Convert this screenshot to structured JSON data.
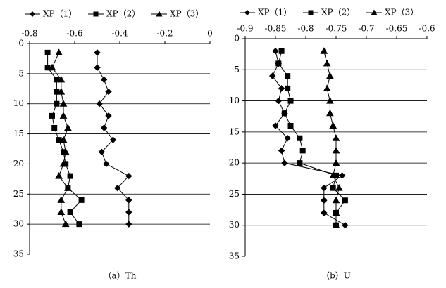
{
  "chart_data": [
    {
      "type": "line",
      "orientation": "vertical",
      "caption": "（a）Th",
      "y": [
        1.5,
        4,
        6,
        8,
        10,
        12,
        14,
        16,
        18,
        20,
        22,
        24,
        26,
        28,
        30
      ],
      "series": [
        {
          "name": "XP（1）",
          "color": "#000000",
          "marker": "diamond",
          "values": [
            -0.5,
            -0.5,
            -0.47,
            -0.45,
            -0.49,
            -0.45,
            -0.47,
            -0.43,
            -0.48,
            -0.46,
            -0.36,
            -0.41,
            -0.36,
            -0.36,
            -0.36
          ]
        },
        {
          "name": "XP（2）",
          "color": "#000000",
          "marker": "square",
          "values": [
            -0.72,
            -0.72,
            -0.68,
            -0.68,
            -0.68,
            -0.7,
            -0.69,
            -0.67,
            -0.65,
            -0.64,
            -0.62,
            -0.63,
            -0.57,
            -0.62,
            -0.58
          ]
        },
        {
          "name": "XP（3）",
          "color": "#000000",
          "marker": "triangle",
          "values": [
            -0.67,
            -0.7,
            -0.66,
            -0.66,
            -0.65,
            -0.65,
            -0.63,
            -0.65,
            -0.64,
            -0.65,
            -0.67,
            -0.63,
            -0.66,
            -0.66,
            -0.64
          ]
        }
      ],
      "xlim": [
        -0.8,
        0
      ],
      "xticks": [
        -0.8,
        -0.6,
        -0.4,
        -0.2,
        0
      ],
      "ylim": [
        0,
        35
      ],
      "yticks": [
        0,
        5,
        10,
        15,
        20,
        25,
        30,
        35
      ],
      "grid": true
    },
    {
      "type": "line",
      "orientation": "vertical",
      "caption": "（b）U",
      "y": [
        2,
        4,
        6,
        8,
        10,
        12,
        14,
        16,
        18,
        20,
        22,
        24,
        26,
        28,
        30
      ],
      "series": [
        {
          "name": "XP（1）",
          "color": "#000000",
          "marker": "diamond",
          "values": [
            -0.85,
            -0.845,
            -0.855,
            -0.84,
            -0.845,
            -0.835,
            -0.85,
            -0.83,
            -0.84,
            -0.835,
            -0.74,
            -0.77,
            -0.77,
            -0.77,
            -0.735
          ]
        },
        {
          "name": "XP（2）",
          "color": "#000000",
          "marker": "square",
          "values": [
            -0.84,
            -0.845,
            -0.83,
            -0.83,
            -0.825,
            -0.835,
            -0.825,
            -0.81,
            -0.805,
            -0.81,
            -0.75,
            -0.755,
            -0.735,
            -0.75,
            -0.75
          ]
        },
        {
          "name": "XP（3）",
          "color": "#000000",
          "marker": "triangle",
          "values": [
            -0.77,
            -0.765,
            -0.76,
            -0.765,
            -0.76,
            -0.76,
            -0.755,
            -0.75,
            -0.75,
            -0.75,
            -0.755,
            -0.745,
            -0.75,
            -0.75,
            -0.75
          ]
        }
      ],
      "xlim": [
        -0.9,
        -0.6
      ],
      "xticks": [
        -0.9,
        -0.85,
        -0.8,
        -0.75,
        -0.7,
        -0.65,
        -0.6
      ],
      "ylim": [
        0,
        35
      ],
      "yticks": [
        0,
        5,
        10,
        15,
        20,
        25,
        30,
        35
      ],
      "grid": true
    }
  ]
}
